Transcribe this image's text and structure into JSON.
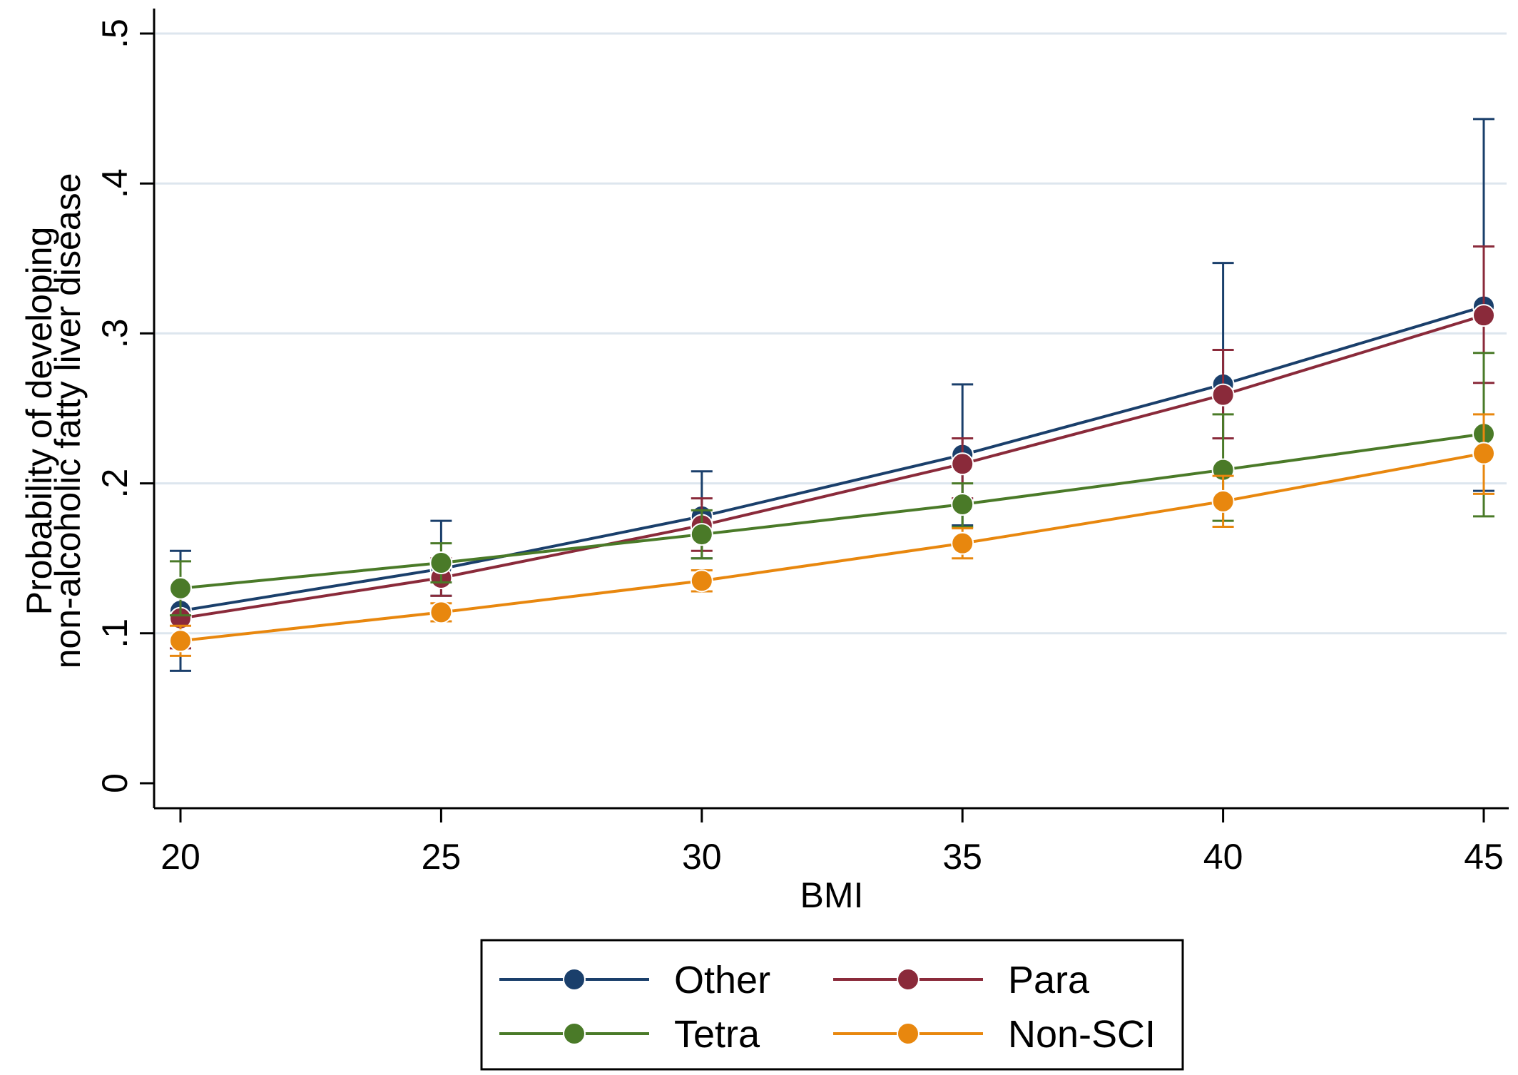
{
  "chart_data": {
    "type": "line",
    "xlabel": "BMI",
    "ylabel_lines": [
      "Probability of developing",
      "non-alcoholic fatty liver disease"
    ],
    "x": [
      20,
      25,
      30,
      35,
      40,
      45
    ],
    "xlim": [
      20,
      45
    ],
    "ylim": [
      0,
      0.5
    ],
    "x_ticks": [
      20,
      25,
      30,
      35,
      40,
      45
    ],
    "x_tick_labels": [
      "20",
      "25",
      "30",
      "35",
      "40",
      "45"
    ],
    "y_ticks": [
      0,
      0.1,
      0.2,
      0.3,
      0.4,
      0.5
    ],
    "y_tick_labels": [
      "0",
      ".1",
      ".2",
      ".3",
      ".4",
      ".5"
    ],
    "grid": "horizontal",
    "legend_position": "bottom",
    "series": [
      {
        "name": "Other",
        "color": "#1a3f6b",
        "values": [
          0.115,
          0.143,
          0.178,
          0.219,
          0.266,
          0.318
        ],
        "ci_lower": [
          0.075,
          0.125,
          0.15,
          0.172,
          0.23,
          0.195
        ],
        "ci_upper": [
          0.155,
          0.175,
          0.208,
          0.266,
          0.347,
          0.443
        ]
      },
      {
        "name": "Para",
        "color": "#8a2a3a",
        "values": [
          0.11,
          0.137,
          0.172,
          0.213,
          0.259,
          0.312
        ],
        "ci_lower": [
          0.09,
          0.125,
          0.155,
          0.19,
          0.23,
          0.267
        ],
        "ci_upper": [
          0.13,
          0.15,
          0.19,
          0.23,
          0.289,
          0.358
        ]
      },
      {
        "name": "Tetra",
        "color": "#4a7a28",
        "values": [
          0.13,
          0.147,
          0.166,
          0.186,
          0.209,
          0.233
        ],
        "ci_lower": [
          0.112,
          0.134,
          0.15,
          0.171,
          0.175,
          0.178
        ],
        "ci_upper": [
          0.148,
          0.16,
          0.182,
          0.2,
          0.246,
          0.287
        ]
      },
      {
        "name": "Non-SCI",
        "color": "#e8870e",
        "values": [
          0.095,
          0.114,
          0.135,
          0.16,
          0.188,
          0.22
        ],
        "ci_lower": [
          0.085,
          0.108,
          0.128,
          0.15,
          0.171,
          0.193
        ],
        "ci_upper": [
          0.105,
          0.12,
          0.142,
          0.17,
          0.205,
          0.246
        ]
      }
    ]
  }
}
